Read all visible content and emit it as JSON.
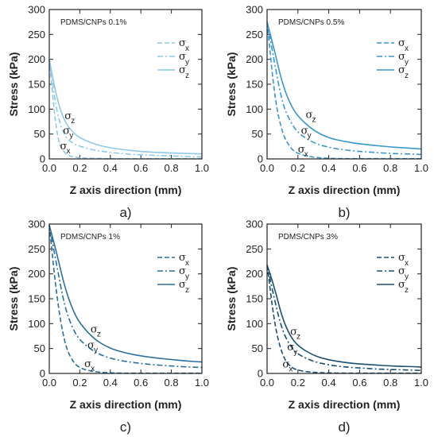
{
  "chart_data": [
    {
      "type": "line",
      "panel_label": "a)",
      "annotation": "PDMS/CNPs 0.1%",
      "color": "#8ec9e8",
      "xlabel": "Z axis direction (mm)",
      "ylabel": "Stress (kPa)",
      "xlim": [
        0,
        1.0
      ],
      "ylim": [
        0,
        300
      ],
      "xticks": [
        "0.0",
        "0.2",
        "0.4",
        "0.6",
        "0.8",
        "1.0"
      ],
      "yticks": [
        "0",
        "50",
        "100",
        "150",
        "200",
        "250",
        "300"
      ],
      "legend_position": "top-right",
      "x": [
        0,
        0.05,
        0.1,
        0.15,
        0.2,
        0.3,
        0.4,
        0.5,
        0.6,
        0.7,
        0.8,
        0.9,
        1.0
      ],
      "series": [
        {
          "name": "σx",
          "symbol": "σ",
          "sub": "x",
          "style": "dashed",
          "values": [
            200,
            40,
            10,
            4,
            2,
            1,
            0.5,
            0.5,
            0.5,
            0.5,
            0.5,
            0.5,
            0.5
          ]
        },
        {
          "name": "σy",
          "symbol": "σ",
          "sub": "y",
          "style": "dashdot",
          "values": [
            200,
            90,
            45,
            32,
            25,
            17,
            13,
            10,
            8,
            7,
            6,
            5,
            4
          ]
        },
        {
          "name": "σz",
          "symbol": "σ",
          "sub": "z",
          "style": "solid",
          "values": [
            200,
            120,
            75,
            55,
            42,
            29,
            22,
            18,
            15,
            13,
            12,
            11,
            10
          ]
        }
      ],
      "curve_labels": [
        {
          "series": "σz",
          "x": 0.1,
          "y": 80
        },
        {
          "series": "σy",
          "x": 0.09,
          "y": 50
        },
        {
          "series": "σx",
          "x": 0.07,
          "y": 19
        }
      ]
    },
    {
      "type": "line",
      "panel_label": "b)",
      "annotation": "PDMS/CNPs 0.5%",
      "color": "#3797cf",
      "xlabel": "Z axis direction (mm)",
      "ylabel": "Stress (kPa)",
      "xlim": [
        0,
        1.0
      ],
      "ylim": [
        0,
        300
      ],
      "xticks": [
        "0.0",
        "0.2",
        "0.4",
        "0.6",
        "0.8",
        "1.0"
      ],
      "yticks": [
        "0",
        "50",
        "100",
        "150",
        "200",
        "250",
        "300"
      ],
      "legend_position": "top-right",
      "x": [
        0,
        0.05,
        0.1,
        0.15,
        0.2,
        0.3,
        0.4,
        0.5,
        0.6,
        0.7,
        0.8,
        0.9,
        1.0
      ],
      "series": [
        {
          "name": "σx",
          "symbol": "σ",
          "sub": "x",
          "style": "dashed",
          "values": [
            275,
            120,
            50,
            22,
            10,
            3,
            1,
            0.5,
            0.5,
            0.5,
            0.5,
            0.5,
            0.5
          ]
        },
        {
          "name": "σy",
          "symbol": "σ",
          "sub": "y",
          "style": "dashdot",
          "values": [
            275,
            190,
            110,
            75,
            52,
            32,
            23,
            18,
            15,
            13,
            11,
            10,
            9
          ]
        },
        {
          "name": "σz",
          "symbol": "σ",
          "sub": "z",
          "style": "solid",
          "values": [
            275,
            215,
            150,
            110,
            85,
            57,
            42,
            35,
            30,
            27,
            24,
            22,
            20
          ]
        }
      ],
      "curve_labels": [
        {
          "series": "σz",
          "x": 0.25,
          "y": 82
        },
        {
          "series": "σy",
          "x": 0.22,
          "y": 50
        },
        {
          "series": "σx",
          "x": 0.2,
          "y": 13
        }
      ]
    },
    {
      "type": "line",
      "panel_label": "c)",
      "annotation": "PDMS/CNPs  1%",
      "color": "#2b6f9d",
      "xlabel": "Z axis direction (mm)",
      "ylabel": "Stress (kPa)",
      "xlim": [
        0,
        1.0
      ],
      "ylim": [
        0,
        300
      ],
      "xticks": [
        "0.0",
        "0.2",
        "0.4",
        "0.6",
        "0.8",
        "1.0"
      ],
      "yticks": [
        "0",
        "50",
        "100",
        "150",
        "200",
        "250",
        "300"
      ],
      "legend_position": "top-right",
      "x": [
        0,
        0.05,
        0.1,
        0.15,
        0.2,
        0.3,
        0.4,
        0.5,
        0.6,
        0.7,
        0.8,
        0.9,
        1.0
      ],
      "series": [
        {
          "name": "σx",
          "symbol": "σ",
          "sub": "x",
          "style": "dashed",
          "values": [
            298,
            150,
            60,
            25,
            10,
            3,
            1,
            0.5,
            0.5,
            0.5,
            0.5,
            0.5,
            0.5
          ]
        },
        {
          "name": "σy",
          "symbol": "σ",
          "sub": "y",
          "style": "dashdot",
          "values": [
            298,
            215,
            135,
            92,
            66,
            42,
            30,
            24,
            20,
            17,
            15,
            13,
            12
          ]
        },
        {
          "name": "σz",
          "symbol": "σ",
          "sub": "z",
          "style": "solid",
          "values": [
            298,
            240,
            175,
            130,
            100,
            67,
            50,
            41,
            35,
            31,
            28,
            25,
            23
          ]
        }
      ],
      "curve_labels": [
        {
          "series": "σz",
          "x": 0.27,
          "y": 82
        },
        {
          "series": "σy",
          "x": 0.25,
          "y": 50
        },
        {
          "series": "σx",
          "x": 0.23,
          "y": 13
        }
      ]
    },
    {
      "type": "line",
      "panel_label": "d)",
      "annotation": "PDMS/CNPs  3%",
      "color": "#1c4f74",
      "xlabel": "Z axis direction (mm)",
      "ylabel": "Stress (kPa)",
      "xlim": [
        0,
        1.0
      ],
      "ylim": [
        0,
        300
      ],
      "xticks": [
        "0.0",
        "0.2",
        "0.4",
        "0.6",
        "0.8",
        "1.0"
      ],
      "yticks": [
        "0",
        "50",
        "100",
        "150",
        "200",
        "250",
        "300"
      ],
      "legend_position": "top-right",
      "x": [
        0,
        0.05,
        0.1,
        0.15,
        0.2,
        0.3,
        0.4,
        0.5,
        0.6,
        0.7,
        0.8,
        0.9,
        1.0
      ],
      "series": [
        {
          "name": "σx",
          "symbol": "σ",
          "sub": "x",
          "style": "dashed",
          "values": [
            218,
            95,
            35,
            13,
            6,
            2,
            1,
            0.5,
            0.5,
            0.5,
            0.5,
            0.5,
            0.5
          ]
        },
        {
          "name": "σy",
          "symbol": "σ",
          "sub": "y",
          "style": "dashdot",
          "values": [
            218,
            145,
            85,
            55,
            38,
            24,
            17,
            13,
            11,
            9,
            8,
            7,
            6
          ]
        },
        {
          "name": "σz",
          "symbol": "σ",
          "sub": "z",
          "style": "solid",
          "values": [
            218,
            170,
            110,
            75,
            55,
            36,
            27,
            22,
            19,
            17,
            15,
            14,
            13
          ]
        }
      ],
      "curve_labels": [
        {
          "series": "σz",
          "x": 0.15,
          "y": 77
        },
        {
          "series": "σy",
          "x": 0.13,
          "y": 46
        },
        {
          "series": "σx",
          "x": 0.1,
          "y": 12
        }
      ]
    }
  ]
}
